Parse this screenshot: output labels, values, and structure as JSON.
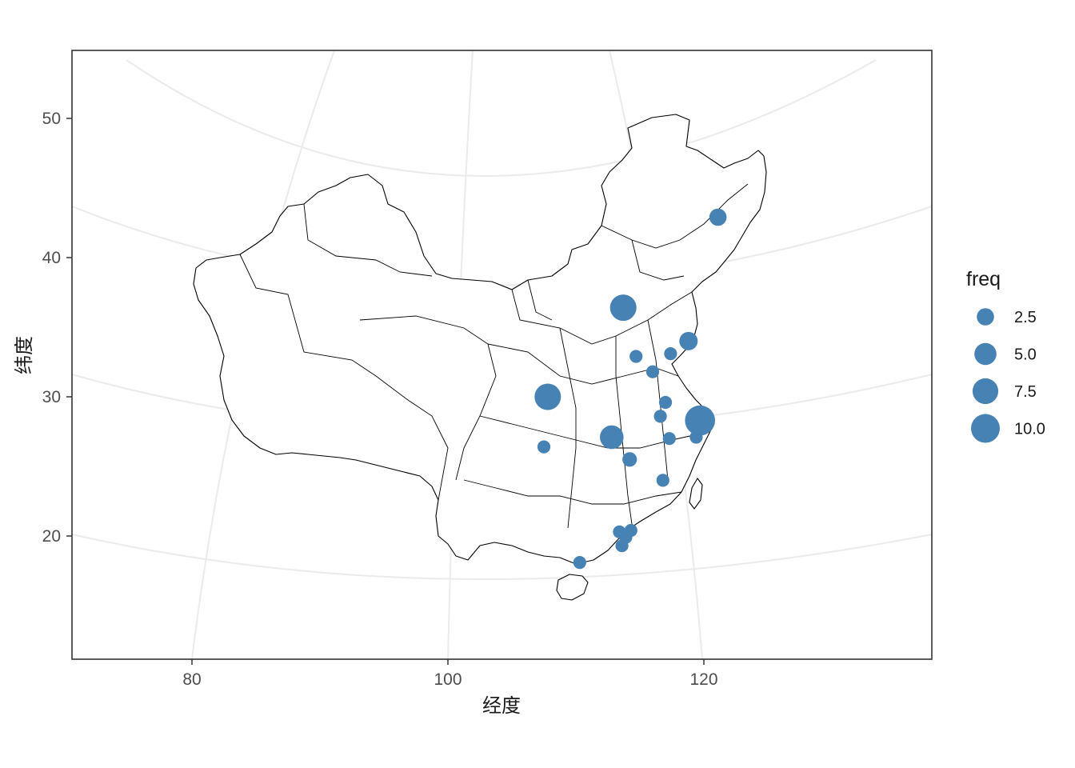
{
  "chart_data": {
    "type": "scatter",
    "subtype": "bubble-map",
    "xlabel": "经度",
    "ylabel": "纬度",
    "x_ticks": [
      80,
      100,
      120
    ],
    "y_ticks": [
      20,
      30,
      40,
      50
    ],
    "xlim": [
      70.8,
      138
    ],
    "ylim": [
      12.6,
      54.5
    ],
    "grid": true,
    "legend_position": "right",
    "legend": {
      "title": "freq",
      "entries": [
        {
          "label": "2.5",
          "value": 2.5
        },
        {
          "label": "5.0",
          "value": 5.0
        },
        {
          "label": "7.5",
          "value": 7.5
        },
        {
          "label": "10.0",
          "value": 10.0
        }
      ]
    },
    "point_color": "#4682B4",
    "points": [
      {
        "lon": 121.1,
        "lat": 42.9,
        "freq": 2.5
      },
      {
        "lon": 113.7,
        "lat": 36.4,
        "freq": 8
      },
      {
        "lon": 118.8,
        "lat": 34.0,
        "freq": 3
      },
      {
        "lon": 117.4,
        "lat": 33.1,
        "freq": 1
      },
      {
        "lon": 114.7,
        "lat": 32.9,
        "freq": 1
      },
      {
        "lon": 116.0,
        "lat": 31.8,
        "freq": 1
      },
      {
        "lon": 117.0,
        "lat": 29.6,
        "freq": 1
      },
      {
        "lon": 116.6,
        "lat": 28.6,
        "freq": 1
      },
      {
        "lon": 107.8,
        "lat": 30.0,
        "freq": 8
      },
      {
        "lon": 119.7,
        "lat": 28.3,
        "freq": 11
      },
      {
        "lon": 119.4,
        "lat": 27.1,
        "freq": 1
      },
      {
        "lon": 112.8,
        "lat": 27.1,
        "freq": 6
      },
      {
        "lon": 117.3,
        "lat": 27.0,
        "freq": 1
      },
      {
        "lon": 107.5,
        "lat": 26.4,
        "freq": 1
      },
      {
        "lon": 114.2,
        "lat": 25.5,
        "freq": 1.5
      },
      {
        "lon": 116.8,
        "lat": 24.0,
        "freq": 1
      },
      {
        "lon": 113.4,
        "lat": 20.3,
        "freq": 1
      },
      {
        "lon": 114.3,
        "lat": 20.4,
        "freq": 1
      },
      {
        "lon": 113.9,
        "lat": 19.9,
        "freq": 1
      },
      {
        "lon": 113.6,
        "lat": 19.3,
        "freq": 1
      },
      {
        "lon": 110.3,
        "lat": 18.1,
        "freq": 1
      }
    ]
  }
}
